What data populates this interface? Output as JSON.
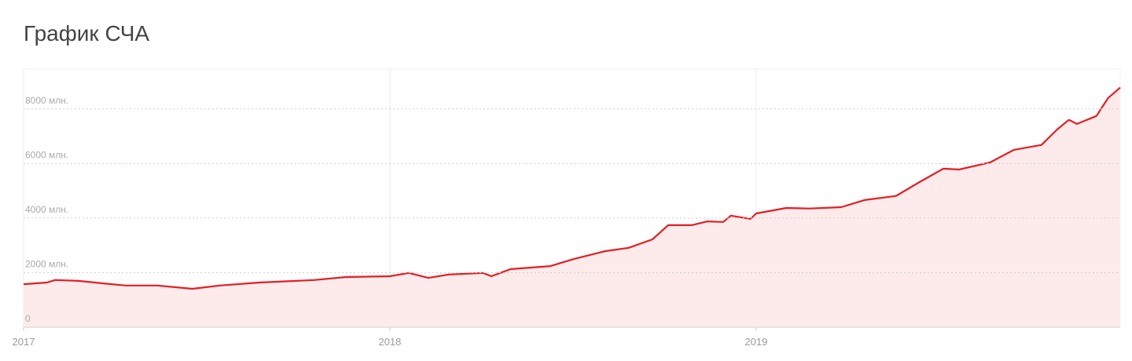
{
  "chart_data": {
    "type": "area",
    "title": "График СЧА",
    "x": [
      2017,
      2017.064,
      2017.086,
      2017.15,
      2017.215,
      2017.279,
      2017.365,
      2017.461,
      2017.536,
      2017.644,
      2017.794,
      2017.88,
      2018,
      2018.052,
      2018.105,
      2018.159,
      2018.255,
      2018.277,
      2018.33,
      2018.438,
      2018.502,
      2018.588,
      2018.652,
      2018.717,
      2018.76,
      2018.824,
      2018.867,
      2018.91,
      2018.931,
      2018.985,
      2019,
      2019.082,
      2019.146,
      2019.232,
      2019.296,
      2019.382,
      2019.446,
      2019.511,
      2019.554,
      2019.639,
      2019.704,
      2019.779,
      2019.822,
      2019.854,
      2019.876,
      2019.929,
      2019.961,
      2019.994
    ],
    "series": [
      {
        "color": "#e31e24",
        "fill": "#fdebeb",
        "values": [
          1580,
          1640,
          1730,
          1700,
          1610,
          1530,
          1530,
          1410,
          1530,
          1640,
          1730,
          1840,
          1870,
          1990,
          1810,
          1930,
          1990,
          1870,
          2130,
          2240,
          2500,
          2790,
          2910,
          3220,
          3740,
          3740,
          3880,
          3860,
          4090,
          3970,
          4170,
          4370,
          4350,
          4400,
          4660,
          4810,
          5320,
          5810,
          5780,
          6040,
          6500,
          6680,
          7250,
          7600,
          7450,
          7740,
          8400,
          8780
        ]
      }
    ],
    "xlim": [
      2017,
      2019.994
    ],
    "xticks": [
      2017,
      2018,
      2019
    ],
    "ylim": [
      0,
      9460
    ],
    "yticks": [
      0,
      {
        "value": 2000,
        "label": "2000 млн."
      },
      {
        "value": 4000,
        "label": "4000 млн."
      },
      {
        "value": 6000,
        "label": "6000 млн."
      },
      {
        "value": 8000,
        "label": "8000 млн."
      }
    ],
    "grid": true
  }
}
